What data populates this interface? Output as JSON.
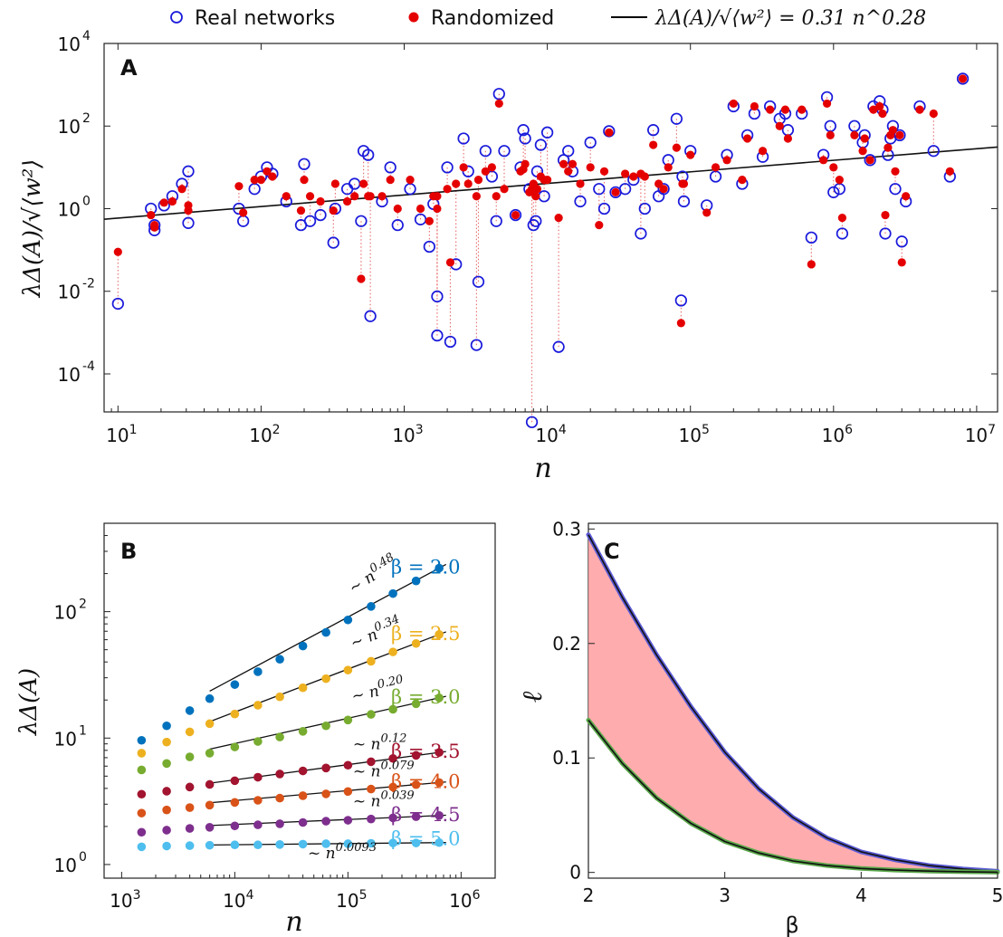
{
  "legend": {
    "items": [
      {
        "label": "Real networks",
        "marker": "open-circle",
        "color": "#1a1adb"
      },
      {
        "label": "Randomized",
        "marker": "filled-circle",
        "color": "#e50000"
      },
      {
        "label": "λΔ(A)/√⟨w²⟩ = 0.31 n^0.28",
        "marker": "line",
        "color": "#000000"
      }
    ]
  },
  "chart_data": [
    {
      "panel": "A",
      "type": "scatter",
      "xlabel": "n",
      "ylabel": "λΔ(A)/√⟨w²⟩",
      "xscale": "log",
      "yscale": "log",
      "xlim": [
        8,
        14000000
      ],
      "ylim": [
        1.2e-05,
        10000
      ],
      "xticks": [
        10,
        100,
        1000,
        10000,
        100000,
        1000000,
        10000000
      ],
      "xtick_labels": [
        "10^1",
        "10^2",
        "10^3",
        "10^4",
        "10^5",
        "10^6",
        "10^7"
      ],
      "yticks": [
        0.0001,
        0.01,
        1,
        100,
        10000
      ],
      "ytick_labels": [
        "10^-4",
        "10^-2",
        "10^0",
        "10^2",
        "10^4"
      ],
      "fit": {
        "label": "λΔ(A)/√⟨w²⟩ = 0.31 n^0.28",
        "coef": 0.31,
        "exponent": 0.28
      },
      "series": [
        {
          "name": "Real networks",
          "x": [
            10,
            17,
            18,
            18,
            21,
            24,
            28,
            31,
            31,
            70,
            75,
            90,
            100,
            110,
            120,
            150,
            190,
            200,
            220,
            260,
            320,
            330,
            400,
            450,
            500,
            520,
            560,
            580,
            700,
            800,
            900,
            1100,
            1300,
            1500,
            1600,
            1700,
            1700,
            2000,
            2100,
            2300,
            2600,
            2800,
            3200,
            3300,
            3700,
            4100,
            4400,
            4600,
            5000,
            6000,
            6500,
            6800,
            7000,
            7500,
            7800,
            8000,
            8300,
            8500,
            9000,
            9500,
            10000,
            12000,
            13000,
            14000,
            15000,
            17000,
            20000,
            23000,
            25000,
            27000,
            30000,
            35000,
            40000,
            45000,
            48000,
            55000,
            60000,
            65000,
            70000,
            80000,
            86000,
            88000,
            90000,
            100000,
            130000,
            150000,
            180000,
            200000,
            230000,
            250000,
            280000,
            320000,
            360000,
            420000,
            460000,
            480000,
            600000,
            700000,
            850000,
            900000,
            950000,
            1000000,
            1100000,
            1150000,
            1400000,
            1600000,
            1650000,
            1800000,
            1900000,
            2100000,
            2200000,
            2300000,
            2400000,
            2500000,
            2600000,
            2700000,
            2900000,
            3000000,
            3200000,
            4000000,
            5000000,
            6500000,
            8000000
          ],
          "y": [
            0.005,
            1.0,
            0.4,
            0.3,
            1.2,
            2.0,
            4.0,
            8.0,
            0.45,
            1.0,
            0.5,
            3.0,
            6.0,
            10.0,
            7.0,
            1.5,
            0.4,
            12.0,
            0.5,
            0.7,
            0.15,
            1.0,
            3.0,
            4.0,
            0.5,
            25.0,
            20.0,
            0.0025,
            1.5,
            10.0,
            0.4,
            3.0,
            0.55,
            0.12,
            1.3,
            0.00085,
            0.0075,
            10.0,
            0.0006,
            0.045,
            50.0,
            8.0,
            0.0005,
            0.017,
            25.0,
            6.0,
            0.5,
            600.0,
            25.0,
            0.7,
            10.0,
            80.0,
            50.0,
            3.0,
            6.8e-06,
            0.4,
            0.5,
            8.0,
            35.0,
            2.0,
            70.0,
            0.00045,
            15.0,
            25.0,
            8.0,
            1.5,
            40.0,
            3.0,
            1.0,
            75.0,
            2.5,
            3.0,
            5.0,
            0.25,
            1.0,
            80.0,
            2.0,
            3.0,
            15.0,
            150.0,
            0.006,
            6.0,
            1.5,
            25.0,
            1.2,
            6.0,
            20.0,
            300.0,
            4.0,
            60.0,
            200.0,
            18.0,
            300.0,
            150.0,
            200.0,
            80.0,
            200.0,
            0.2,
            20.0,
            500.0,
            100.0,
            2.5,
            3.0,
            0.25,
            100.0,
            40.0,
            60.0,
            15.0,
            300.0,
            400.0,
            250.0,
            0.25,
            20.0,
            50.0,
            100.0,
            3.0,
            60.0,
            0.16,
            1.5,
            300.0,
            25.0,
            6.0,
            1400.0
          ]
        },
        {
          "name": "Randomized",
          "x": [
            10,
            17,
            18,
            18,
            21,
            24,
            28,
            31,
            31,
            70,
            75,
            90,
            100,
            110,
            120,
            150,
            190,
            200,
            220,
            260,
            320,
            330,
            400,
            450,
            500,
            520,
            560,
            580,
            700,
            800,
            900,
            1100,
            1300,
            1500,
            1600,
            1700,
            1700,
            2000,
            2100,
            2300,
            2600,
            2800,
            3200,
            3300,
            3700,
            4100,
            4400,
            4600,
            5000,
            6000,
            6500,
            6800,
            7000,
            7500,
            7800,
            8000,
            8300,
            8500,
            9000,
            9500,
            10000,
            12000,
            13000,
            14000,
            15000,
            17000,
            20000,
            23000,
            25000,
            27000,
            30000,
            35000,
            40000,
            45000,
            48000,
            55000,
            60000,
            65000,
            70000,
            80000,
            86000,
            88000,
            90000,
            100000,
            130000,
            150000,
            180000,
            200000,
            230000,
            250000,
            280000,
            320000,
            360000,
            420000,
            460000,
            480000,
            600000,
            700000,
            850000,
            900000,
            950000,
            1000000,
            1100000,
            1150000,
            1400000,
            1600000,
            1650000,
            1800000,
            1900000,
            2100000,
            2200000,
            2300000,
            2400000,
            2500000,
            2600000,
            2700000,
            2900000,
            3000000,
            3200000,
            4000000,
            5000000,
            6500000,
            8000000
          ],
          "y": [
            0.09,
            0.7,
            0.35,
            0.4,
            1.4,
            1.5,
            3.0,
            1.2,
            0.9,
            3.5,
            0.8,
            5.0,
            5.0,
            8.0,
            6.0,
            2.0,
            0.9,
            5.0,
            2.0,
            1.5,
            0.9,
            4.0,
            1.5,
            2.0,
            0.02,
            4.0,
            2.0,
            2.0,
            2.0,
            5.0,
            1.0,
            5.0,
            1.0,
            0.5,
            2.0,
            1.0,
            2.0,
            3.0,
            0.05,
            4.0,
            10.0,
            4.0,
            2.0,
            5.0,
            8.0,
            10.0,
            2.0,
            350.0,
            3.0,
            0.7,
            8.0,
            9.0,
            12.0,
            2.5,
            3.0,
            4.0,
            2.0,
            3.0,
            6.0,
            5.0,
            5.0,
            0.6,
            12.0,
            8.0,
            12.0,
            4.0,
            10.0,
            0.4,
            8.0,
            70.0,
            2.5,
            7.0,
            6.0,
            7.0,
            6.0,
            35.0,
            4.0,
            3.0,
            10.0,
            30.0,
            0.0017,
            4.0,
            4.0,
            20.0,
            0.8,
            10.0,
            15.0,
            350.0,
            5.0,
            50.0,
            300.0,
            25.0,
            250.0,
            100.0,
            250.0,
            50.0,
            250.0,
            0.045,
            15.0,
            350.0,
            60.0,
            10.0,
            5.0,
            0.6,
            60.0,
            25.0,
            50.0,
            15.0,
            250.0,
            300.0,
            200.0,
            0.7,
            30.0,
            60.0,
            80.0,
            8.0,
            60.0,
            0.05,
            2.0,
            250.0,
            200.0,
            8.0,
            1400.0
          ]
        }
      ]
    },
    {
      "panel": "B",
      "type": "scatter",
      "xlabel": "n",
      "ylabel": "λΔ(A)",
      "xscale": "log",
      "yscale": "log",
      "xlim": [
        700,
        2000000
      ],
      "ylim": [
        0.78,
        500
      ],
      "xticks": [
        1000,
        10000,
        100000,
        1000000
      ],
      "xtick_labels": [
        "10^3",
        "10^4",
        "10^5",
        "10^6"
      ],
      "yticks": [
        1,
        10,
        100
      ],
      "ytick_labels": [
        "10^0",
        "10^1",
        "10^2"
      ],
      "x": [
        1500,
        2500,
        4000,
        6000,
        10000,
        16000,
        25000,
        40000,
        64000,
        100000,
        160000,
        250000,
        400000,
        640000
      ],
      "series": [
        {
          "name": "β = 2.0",
          "color": "#0072bd",
          "fit_label": "~ n^0.48",
          "exponent": 0.48,
          "values": [
            9.6,
            12.5,
            16.5,
            20.5,
            26.5,
            33.5,
            42.0,
            53.5,
            68.5,
            86.0,
            110.0,
            139.0,
            175.0,
            221.0
          ]
        },
        {
          "name": "β = 2.5",
          "color": "#edb120",
          "fit_label": "~ n^0.34",
          "exponent": 0.34,
          "values": [
            7.6,
            9.3,
            11.2,
            13.0,
            15.5,
            18.2,
            21.2,
            25.0,
            29.5,
            34.5,
            40.5,
            48.0,
            56.0,
            66.0
          ]
        },
        {
          "name": "β = 3.0",
          "color": "#77ac30",
          "fit_label": "~ n^0.20",
          "exponent": 0.2,
          "values": [
            5.6,
            6.3,
            7.1,
            7.6,
            8.5,
            9.4,
            10.2,
            11.3,
            12.5,
            13.9,
            15.4,
            16.9,
            18.7,
            20.8
          ]
        },
        {
          "name": "β = 3.5",
          "color": "#a2142f",
          "fit_label": "~ n^0.12",
          "exponent": 0.12,
          "values": [
            3.6,
            3.8,
            4.1,
            4.3,
            4.6,
            4.9,
            5.2,
            5.5,
            5.8,
            6.1,
            6.5,
            6.9,
            7.3,
            7.7
          ]
        },
        {
          "name": "β = 4.0",
          "color": "#d95319",
          "fit_label": "~ n^0.079",
          "exponent": 0.079,
          "values": [
            2.55,
            2.7,
            2.82,
            2.95,
            3.1,
            3.22,
            3.35,
            3.5,
            3.62,
            3.78,
            3.95,
            4.1,
            4.28,
            4.45
          ]
        },
        {
          "name": "β = 4.5",
          "color": "#7e2f8e",
          "fit_label": "~ n^0.039",
          "exponent": 0.039,
          "values": [
            1.8,
            1.87,
            1.93,
            1.97,
            2.02,
            2.06,
            2.1,
            2.15,
            2.2,
            2.24,
            2.29,
            2.34,
            2.39,
            2.44
          ]
        },
        {
          "name": "β = 5.0",
          "color": "#4dbeee",
          "fit_label": "~ n^0.0093",
          "exponent": 0.0093,
          "values": [
            1.38,
            1.4,
            1.41,
            1.42,
            1.43,
            1.43,
            1.44,
            1.45,
            1.46,
            1.46,
            1.47,
            1.48,
            1.48,
            1.49
          ]
        }
      ]
    },
    {
      "panel": "C",
      "type": "area",
      "xlabel": "β",
      "ylabel": "ℓ",
      "xlim": [
        2,
        5
      ],
      "ylim": [
        -0.005,
        0.305
      ],
      "xticks": [
        2,
        3,
        4,
        5
      ],
      "xtick_labels": [
        "2",
        "3",
        "4",
        "5"
      ],
      "yticks": [
        0,
        0.1,
        0.2,
        0.3
      ],
      "ytick_labels": [
        "0",
        "0.1",
        "0.2",
        "0.3"
      ],
      "fill_color": "#ff9ea0",
      "x": [
        2.0,
        2.25,
        2.5,
        2.75,
        3.0,
        3.25,
        3.5,
        3.75,
        4.0,
        4.25,
        4.5,
        4.75,
        5.0
      ],
      "series": [
        {
          "name": "upper",
          "color": "#5b5bd6",
          "values": [
            0.295,
            0.24,
            0.19,
            0.145,
            0.105,
            0.073,
            0.048,
            0.03,
            0.018,
            0.011,
            0.006,
            0.003,
            0.001
          ]
        },
        {
          "name": "lower",
          "color": "#5aa84a",
          "values": [
            0.133,
            0.095,
            0.065,
            0.043,
            0.027,
            0.017,
            0.01,
            0.006,
            0.0035,
            0.002,
            0.0012,
            0.0006,
            0.0002
          ]
        }
      ]
    }
  ],
  "panels": {
    "a_label": "A",
    "b_label": "B",
    "c_label": "C"
  }
}
